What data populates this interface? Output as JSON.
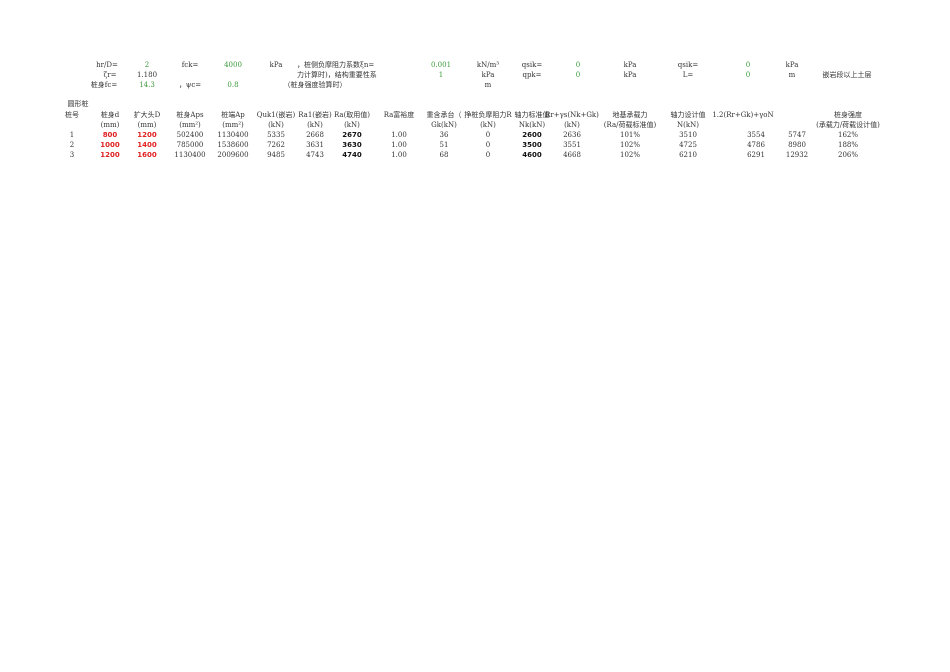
{
  "params": {
    "row1": [
      {
        "t": "hr/D="
      },
      {
        "t": "2",
        "green": true
      },
      {
        "t": "fck="
      },
      {
        "t": "4000",
        "green": true
      },
      {
        "t": "kPa"
      },
      {
        "t": "，桩侧负摩阻力系数ξn=",
        "left": true
      },
      {
        "t": "0.001",
        "green": true
      },
      {
        "t": "kN/m³"
      },
      {
        "t": "qsik="
      },
      {
        "t": "0",
        "green": true
      },
      {
        "t": "kPa"
      },
      {
        "t": "qsik="
      },
      {
        "t": "0",
        "green": true
      },
      {
        "t": "kPa"
      }
    ],
    "row2": [
      {
        "t": "ζr="
      },
      {
        "t": "1.180"
      },
      {
        "t": "力计算时)，结构重要性系",
        "left": true
      },
      {
        "t": "1",
        "green": true
      },
      {
        "t": "kPa"
      },
      {
        "t": "qpk="
      },
      {
        "t": "0",
        "green": true
      },
      {
        "t": "kPa"
      },
      {
        "t": "L="
      },
      {
        "t": "0",
        "green": true
      },
      {
        "t": "m"
      },
      {
        "t": "嵌岩段以上土层"
      }
    ],
    "row3": [
      {
        "t": "桩身fc="
      },
      {
        "t": "14.3",
        "green": true
      },
      {
        "t": "，ψc="
      },
      {
        "t": "0.8",
        "green": true
      },
      {
        "t": "（桩身强度验算时）"
      },
      {
        "t": "m"
      }
    ]
  },
  "table": {
    "section_title": "圆形桩",
    "header1": [
      "桩号",
      "桩身d",
      "扩大头D",
      "桩身Aps",
      "桩端Ap",
      "Quk1(嵌岩)",
      "Ra1(嵌岩)",
      "Ra(取用值)",
      "Ra富裕度",
      "重含承台（",
      "挣桩负摩阻力R",
      "轴力标准值",
      "Rr+γs(Nk+Gk)",
      "地基承载力",
      "轴力设计值",
      "1.2(Rr+Gk)+γoN",
      "",
      "桩身强度"
    ],
    "header2": [
      "",
      "(mm)",
      "(mm)",
      "(mm²)",
      "(mm²)",
      "(kN)",
      "(kN)",
      "(kN)",
      "",
      "Gk(kN)",
      "(kN)",
      "Nk(kN)",
      "(kN)",
      "(Ra/荷载标准值)",
      "N(kN)",
      "",
      "",
      "(承载力/荷载设计值)"
    ],
    "rows": [
      [
        "1",
        "800",
        "1200",
        "502400",
        "1130400",
        "5335",
        "2668",
        "2670",
        "1.00",
        "36",
        "0",
        "2600",
        "2636",
        "101%",
        "3510",
        "3554",
        "5747",
        "162%"
      ],
      [
        "2",
        "1000",
        "1400",
        "785000",
        "1538600",
        "7262",
        "3631",
        "3630",
        "1.00",
        "51",
        "0",
        "3500",
        "3551",
        "102%",
        "4725",
        "4786",
        "8980",
        "188%"
      ],
      [
        "3",
        "1200",
        "1600",
        "1130400",
        "2009600",
        "9485",
        "4743",
        "4740",
        "1.00",
        "68",
        "0",
        "4600",
        "4668",
        "102%",
        "6210",
        "6291",
        "12932",
        "206%"
      ]
    ]
  },
  "colors": {
    "input_green": "#3a9a3a",
    "input_red": "#e02020"
  }
}
